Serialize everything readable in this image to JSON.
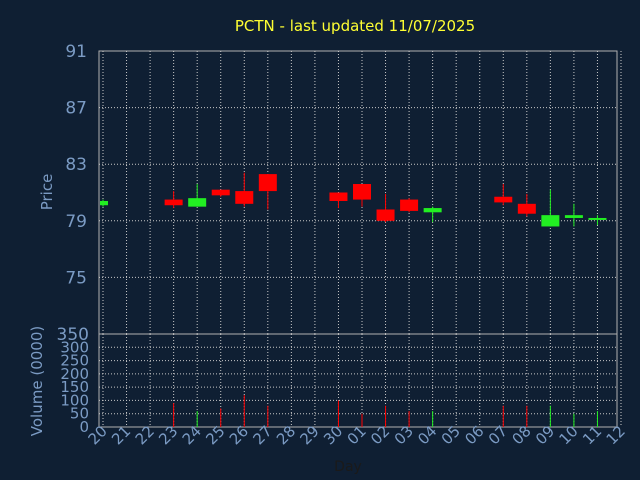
{
  "chart_data": {
    "type": "candlestick",
    "title": "PCTN - last updated 11/07/2025",
    "xlabel": "Day",
    "price_ylabel": "Price",
    "volume_ylabel": "Volume (0000)",
    "x_ticks": [
      "20",
      "21",
      "22",
      "23",
      "24",
      "25",
      "26",
      "27",
      "28",
      "29",
      "30",
      "01",
      "02",
      "03",
      "04",
      "05",
      "06",
      "07",
      "08",
      "09",
      "10",
      "11",
      "12"
    ],
    "price_ylim": [
      71,
      91
    ],
    "price_ticks": [
      75,
      79,
      83,
      87,
      91
    ],
    "volume_ylim": [
      0,
      350
    ],
    "volume_ticks": [
      0,
      50,
      100,
      150,
      200,
      250,
      300,
      350
    ],
    "grid": true,
    "colors": {
      "up": "#22ee22",
      "down": "#ff0000",
      "background": "#0f1f33",
      "plot_border": "#b0b0b0",
      "grid": "#c8c8c8",
      "title": "#ffff33",
      "axis_text": "#7b9bc4"
    },
    "candles": [
      {
        "day": "20",
        "open": 80.1,
        "high": 80.5,
        "low": 80.0,
        "close": 80.4,
        "volume": 0
      },
      {
        "day": "23",
        "open": 80.5,
        "high": 81.1,
        "low": 79.9,
        "close": 80.1,
        "volume": 90
      },
      {
        "day": "24",
        "open": 80.0,
        "high": 81.6,
        "low": 80.0,
        "close": 80.6,
        "volume": 60
      },
      {
        "day": "25",
        "open": 81.2,
        "high": 81.2,
        "low": 80.7,
        "close": 80.8,
        "volume": 70
      },
      {
        "day": "26",
        "open": 81.1,
        "high": 82.4,
        "low": 80.0,
        "close": 80.2,
        "volume": 120
      },
      {
        "day": "27",
        "open": 82.3,
        "high": 82.3,
        "low": 79.8,
        "close": 81.1,
        "volume": 80
      },
      {
        "day": "30",
        "open": 81.0,
        "high": 81.0,
        "low": 79.9,
        "close": 80.4,
        "volume": 100
      },
      {
        "day": "01",
        "open": 81.6,
        "high": 81.6,
        "low": 80.0,
        "close": 80.5,
        "volume": 50
      },
      {
        "day": "02",
        "open": 79.8,
        "high": 80.9,
        "low": 78.9,
        "close": 79.0,
        "volume": 80
      },
      {
        "day": "03",
        "open": 80.5,
        "high": 80.6,
        "low": 79.6,
        "close": 79.7,
        "volume": 60
      },
      {
        "day": "04",
        "open": 79.6,
        "high": 80.0,
        "low": 78.9,
        "close": 79.9,
        "volume": 60
      },
      {
        "day": "07",
        "open": 80.7,
        "high": 81.6,
        "low": 80.1,
        "close": 80.3,
        "volume": 80
      },
      {
        "day": "08",
        "open": 80.2,
        "high": 80.9,
        "low": 79.3,
        "close": 79.5,
        "volume": 80
      },
      {
        "day": "09",
        "open": 78.6,
        "high": 81.2,
        "low": 78.6,
        "close": 79.4,
        "volume": 80
      },
      {
        "day": "10",
        "open": 79.2,
        "high": 80.2,
        "low": 78.6,
        "close": 79.4,
        "volume": 50
      },
      {
        "day": "11",
        "open": 79.1,
        "high": 79.4,
        "low": 78.7,
        "close": 79.2,
        "volume": 60
      }
    ]
  }
}
